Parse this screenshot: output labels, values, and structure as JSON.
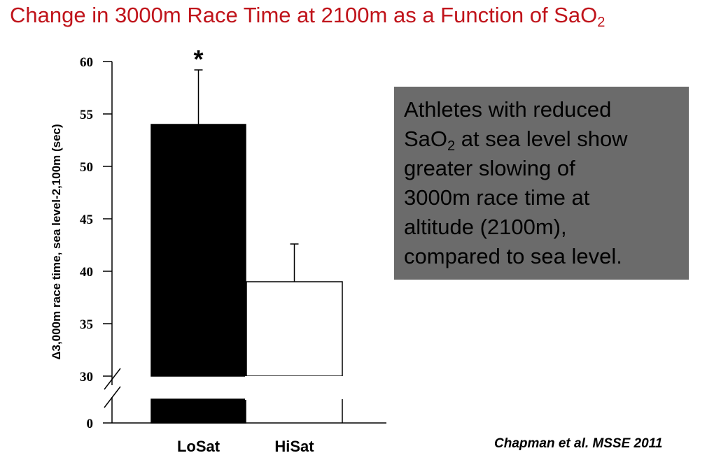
{
  "title": {
    "main": "Change in 3000m Race Time at 2100m as a Function of SaO",
    "sub": "2"
  },
  "callout": {
    "line1": "Athletes with reduced",
    "sao": "SaO",
    "sao_sub": "2",
    "line2_rest": " at sea level show",
    "line3": "greater slowing of",
    "line4": "3000m race time at",
    "line5": "altitude (2100m),",
    "line6": "compared to sea level."
  },
  "citation": "Chapman et al. MSSE 2011",
  "chart_data": {
    "type": "bar",
    "ylabel": "Δ3,000m race time, sea level-2,100m (sec)",
    "categories": [
      "LoSat",
      "HiSat"
    ],
    "values": [
      54,
      39
    ],
    "error_upper": [
      59.2,
      42.6
    ],
    "significance": [
      "*",
      ""
    ],
    "bar_colors": [
      "#000000",
      "#ffffff"
    ],
    "yticks": [
      60,
      55,
      50,
      45,
      40,
      35,
      30
    ],
    "ytick_zero": "0",
    "ylim": [
      30,
      60
    ],
    "axis_break": true,
    "grid": false,
    "legend": "none"
  }
}
